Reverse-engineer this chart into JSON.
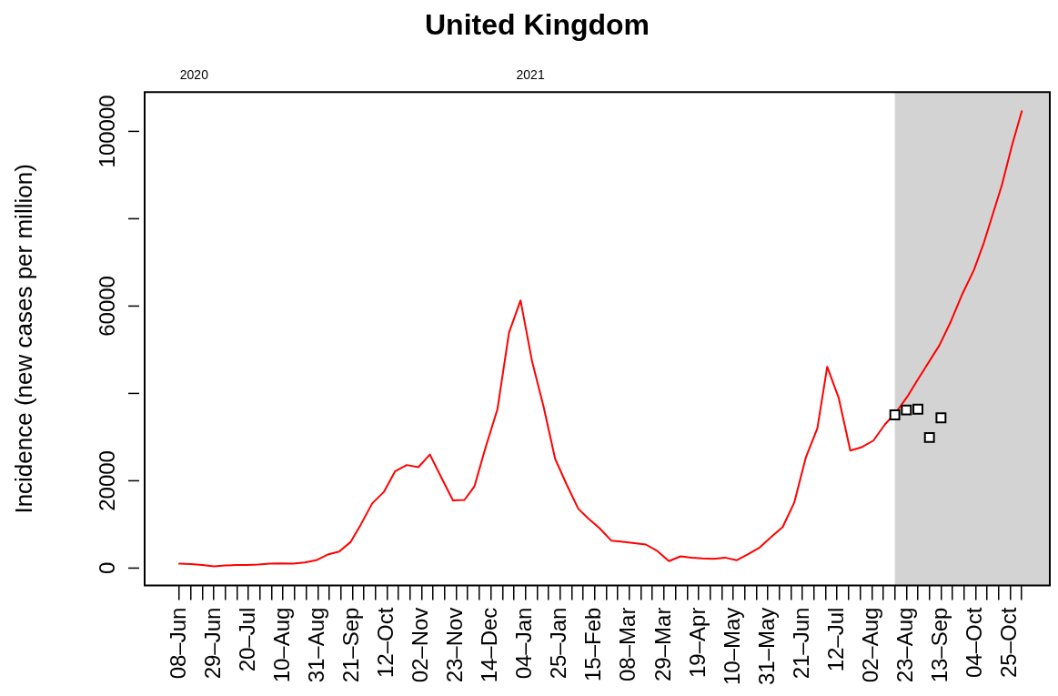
{
  "chart_data": {
    "type": "line",
    "title": "United Kingdom",
    "ylabel": "Incidence (new cases per million)",
    "series": [
      {
        "color": "#ff0000",
        "x": [
          "2020-06-08",
          "2020-06-15",
          "2020-06-22",
          "2020-06-29",
          "2020-07-06",
          "2020-07-13",
          "2020-07-19",
          "2020-07-26",
          "2020-08-02",
          "2020-08-09",
          "2020-08-16",
          "2020-08-23",
          "2020-08-30",
          "2020-09-06",
          "2020-09-13",
          "2020-09-20",
          "2020-09-26",
          "2020-10-03",
          "2020-10-10",
          "2020-10-17",
          "2020-10-24",
          "2020-10-31",
          "2020-11-07",
          "2020-11-14",
          "2020-11-21",
          "2020-11-28",
          "2020-12-04",
          "2020-12-11",
          "2020-12-18",
          "2020-12-25",
          "2021-01-01",
          "2021-01-08",
          "2021-01-15",
          "2021-01-22",
          "2021-01-29",
          "2021-02-05",
          "2021-02-11",
          "2021-02-18",
          "2021-02-25",
          "2021-03-04",
          "2021-03-11",
          "2021-03-18",
          "2021-03-25",
          "2021-04-01",
          "2021-04-08",
          "2021-04-15",
          "2021-04-21",
          "2021-04-28",
          "2021-05-05",
          "2021-05-12",
          "2021-05-19",
          "2021-05-26",
          "2021-06-02",
          "2021-06-09",
          "2021-06-16",
          "2021-06-23",
          "2021-06-30",
          "2021-07-06",
          "2021-07-13",
          "2021-07-20",
          "2021-07-27",
          "2021-08-03",
          "2021-08-10",
          "2021-08-17",
          "2021-08-24",
          "2021-08-30",
          "2021-09-12",
          "2021-09-19",
          "2021-09-26",
          "2021-10-03",
          "2021-10-09",
          "2021-10-20",
          "2021-10-26",
          "2021-11-01"
        ],
        "values": [
          1000,
          900,
          700,
          400,
          600,
          700,
          700,
          800,
          1000,
          1100,
          1000,
          1300,
          1800,
          3100,
          3800,
          6000,
          9900,
          14800,
          17400,
          22200,
          23600,
          23100,
          26000,
          20700,
          15500,
          15600,
          18700,
          27900,
          36400,
          53900,
          61300,
          47300,
          36900,
          25000,
          19100,
          13600,
          11400,
          9100,
          6300,
          6000,
          5700,
          5400,
          3900,
          1600,
          2700,
          2400,
          2200,
          2100,
          2400,
          1800,
          3200,
          4700,
          7100,
          9400,
          15000,
          25300,
          32000,
          46100,
          38900,
          26900,
          27700,
          29200,
          32900,
          35800,
          39500,
          43200,
          51000,
          56500,
          62800,
          68300,
          74500,
          87800,
          96700,
          104600
        ]
      },
      {
        "type": "scatter",
        "color": "#000000",
        "marker": "square",
        "x": [
          "2021-08-16",
          "2021-08-23",
          "2021-08-30",
          "2021-09-06",
          "2021-09-13"
        ],
        "values": [
          35100,
          36200,
          36400,
          29900,
          34400
        ]
      }
    ],
    "xlim": [
      "2020-05-18",
      "2021-11-18"
    ],
    "xticks": [
      {
        "value": "2020-06-08",
        "label": "08–Jun"
      },
      {
        "value": "2020-06-15",
        "label": null
      },
      {
        "value": "2020-06-22",
        "label": null
      },
      {
        "value": "2020-06-29",
        "label": "29–Jun"
      },
      {
        "value": "2020-07-06",
        "label": null
      },
      {
        "value": "2020-07-13",
        "label": null
      },
      {
        "value": "2020-07-20",
        "label": "20–Jul"
      },
      {
        "value": "2020-07-27",
        "label": null
      },
      {
        "value": "2020-08-03",
        "label": null
      },
      {
        "value": "2020-08-10",
        "label": "10–Aug"
      },
      {
        "value": "2020-08-17",
        "label": null
      },
      {
        "value": "2020-08-24",
        "label": null
      },
      {
        "value": "2020-08-31",
        "label": "31–Aug"
      },
      {
        "value": "2020-09-07",
        "label": null
      },
      {
        "value": "2020-09-14",
        "label": null
      },
      {
        "value": "2020-09-21",
        "label": "21–Sep"
      },
      {
        "value": "2020-09-28",
        "label": null
      },
      {
        "value": "2020-10-05",
        "label": null
      },
      {
        "value": "2020-10-12",
        "label": "12–Oct"
      },
      {
        "value": "2020-10-19",
        "label": null
      },
      {
        "value": "2020-10-26",
        "label": null
      },
      {
        "value": "2020-11-02",
        "label": "02–Nov"
      },
      {
        "value": "2020-11-09",
        "label": null
      },
      {
        "value": "2020-11-16",
        "label": null
      },
      {
        "value": "2020-11-23",
        "label": "23–Nov"
      },
      {
        "value": "2020-11-30",
        "label": null
      },
      {
        "value": "2020-12-07",
        "label": null
      },
      {
        "value": "2020-12-14",
        "label": "14–Dec"
      },
      {
        "value": "2020-12-21",
        "label": null
      },
      {
        "value": "2020-12-28",
        "label": null
      },
      {
        "value": "2021-01-04",
        "label": "04–Jan"
      },
      {
        "value": "2021-01-11",
        "label": null
      },
      {
        "value": "2021-01-18",
        "label": null
      },
      {
        "value": "2021-01-25",
        "label": "25–Jan"
      },
      {
        "value": "2021-02-01",
        "label": null
      },
      {
        "value": "2021-02-08",
        "label": null
      },
      {
        "value": "2021-02-15",
        "label": "15–Feb"
      },
      {
        "value": "2021-02-22",
        "label": null
      },
      {
        "value": "2021-03-01",
        "label": null
      },
      {
        "value": "2021-03-08",
        "label": "08–Mar"
      },
      {
        "value": "2021-03-15",
        "label": null
      },
      {
        "value": "2021-03-22",
        "label": null
      },
      {
        "value": "2021-03-29",
        "label": "29–Mar"
      },
      {
        "value": "2021-04-05",
        "label": null
      },
      {
        "value": "2021-04-12",
        "label": null
      },
      {
        "value": "2021-04-19",
        "label": "19–Apr"
      },
      {
        "value": "2021-04-26",
        "label": null
      },
      {
        "value": "2021-05-03",
        "label": null
      },
      {
        "value": "2021-05-10",
        "label": "10–May"
      },
      {
        "value": "2021-05-17",
        "label": null
      },
      {
        "value": "2021-05-24",
        "label": null
      },
      {
        "value": "2021-05-31",
        "label": "31–May"
      },
      {
        "value": "2021-06-07",
        "label": null
      },
      {
        "value": "2021-06-14",
        "label": null
      },
      {
        "value": "2021-06-21",
        "label": "21–Jun"
      },
      {
        "value": "2021-06-28",
        "label": null
      },
      {
        "value": "2021-07-05",
        "label": null
      },
      {
        "value": "2021-07-12",
        "label": "12–Jul"
      },
      {
        "value": "2021-07-19",
        "label": null
      },
      {
        "value": "2021-07-26",
        "label": null
      },
      {
        "value": "2021-08-02",
        "label": "02–Aug"
      },
      {
        "value": "2021-08-09",
        "label": null
      },
      {
        "value": "2021-08-16",
        "label": null
      },
      {
        "value": "2021-08-23",
        "label": "23–Aug"
      },
      {
        "value": "2021-08-30",
        "label": null
      },
      {
        "value": "2021-09-06",
        "label": null
      },
      {
        "value": "2021-09-13",
        "label": "13–Sep"
      },
      {
        "value": "2021-09-20",
        "label": null
      },
      {
        "value": "2021-09-27",
        "label": null
      },
      {
        "value": "2021-10-04",
        "label": "04–Oct"
      },
      {
        "value": "2021-10-11",
        "label": null
      },
      {
        "value": "2021-10-18",
        "label": null
      },
      {
        "value": "2021-10-25",
        "label": "25–Oct"
      },
      {
        "value": "2021-11-01",
        "label": null
      }
    ],
    "x2lim": [
      "2020-05-18",
      "2021-11-18"
    ],
    "x2ticks": [
      {
        "value": "2020-06-17",
        "label": "2020"
      },
      {
        "value": "2021-01-07",
        "label": "2021"
      }
    ],
    "ylim": [
      -4000,
      109000
    ],
    "yticks": [
      0,
      20000,
      {
        "value": 40000,
        "label": null
      },
      60000,
      {
        "value": 80000,
        "label": null
      },
      100000
    ],
    "bands": [
      {
        "axis": "x",
        "from": "2021-08-16",
        "to": "2021-11-18",
        "color": "#d3d3d3"
      }
    ],
    "legend": false,
    "marker": "none",
    "line_style": "solid"
  }
}
